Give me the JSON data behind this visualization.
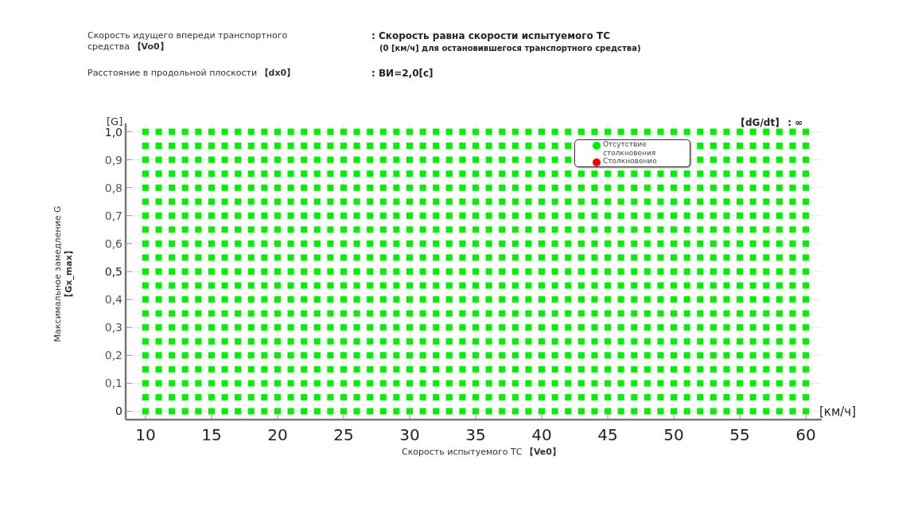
{
  "chart_data": {
    "type": "scatter",
    "annotations": [
      "Скорость идущего впереди транспортного средства 【Vo0】",
      "Расстояние в продольной плоскости 【dx0】",
      ": Скорость равна скорости испытуемого ТС",
      "(0 [км/ч] для остановившегося транспортного средства)",
      ": ВИ=2,0[с]",
      "[G]",
      "【dG/dt】 : ∞",
      "[км/ч]"
    ],
    "xlabel": "Скорость испытуемого ТС 【Ve0】",
    "ylabel": "Максимальное замедление G 【Gx_max】",
    "xlim": [
      8.5,
      61.2
    ],
    "ylim": [
      -0.03,
      1.03
    ],
    "xticks": [
      10,
      15,
      20,
      25,
      30,
      35,
      40,
      45,
      50,
      55,
      60
    ],
    "yticks": [
      {
        "value": 0,
        "label": "0"
      },
      {
        "value": 0.1,
        "label": "0,1"
      },
      {
        "value": 0.2,
        "label": "0,2"
      },
      {
        "value": 0.3,
        "label": "0,3"
      },
      {
        "value": 0.4,
        "label": "0,4"
      },
      {
        "value": 0.5,
        "label": "0,5"
      },
      {
        "value": 0.6,
        "label": "0,6"
      },
      {
        "value": 0.7,
        "label": "0,7"
      },
      {
        "value": 0.8,
        "label": "0,8"
      },
      {
        "value": 0.9,
        "label": "0,9"
      },
      {
        "value": 1.0,
        "label": "1,0"
      }
    ],
    "grid": true,
    "legend": "top right",
    "marker": "square",
    "x": [
      10,
      11,
      12,
      13,
      14,
      15,
      16,
      17,
      18,
      19,
      20,
      21,
      22,
      23,
      24,
      25,
      26,
      27,
      28,
      29,
      30,
      31,
      32,
      33,
      34,
      35,
      36,
      37,
      38,
      39,
      40,
      41,
      42,
      43,
      44,
      45,
      46,
      47,
      48,
      49,
      50,
      51,
      52,
      53,
      54,
      55,
      56,
      57,
      58,
      59,
      60
    ],
    "series": [
      {
        "name": "Отсутствие столкновения",
        "color": "#00f000",
        "values": [
          0,
          0,
          0,
          0,
          0,
          0,
          0,
          0,
          0,
          0,
          0,
          0,
          0,
          0,
          0,
          0,
          0,
          0,
          0,
          0,
          0,
          0,
          0,
          0,
          0,
          0,
          0,
          0,
          0,
          0,
          0,
          0,
          0,
          0,
          0,
          0,
          0,
          0,
          0,
          0,
          0,
          0,
          0,
          0,
          0,
          0,
          0,
          0,
          0,
          0,
          0
        ]
      },
      {
        "color": "#00f000",
        "values": [
          0.05,
          0.05,
          0.05,
          0.05,
          0.05,
          0.05,
          0.05,
          0.05,
          0.05,
          0.05,
          0.05,
          0.05,
          0.05,
          0.05,
          0.05,
          0.05,
          0.05,
          0.05,
          0.05,
          0.05,
          0.05,
          0.05,
          0.05,
          0.05,
          0.05,
          0.05,
          0.05,
          0.05,
          0.05,
          0.05,
          0.05,
          0.05,
          0.05,
          0.05,
          0.05,
          0.05,
          0.05,
          0.05,
          0.05,
          0.05,
          0.05,
          0.05,
          0.05,
          0.05,
          0.05,
          0.05,
          0.05,
          0.05,
          0.05,
          0.05,
          0.05
        ]
      },
      {
        "color": "#00f000",
        "values": [
          0.1,
          0.1,
          0.1,
          0.1,
          0.1,
          0.1,
          0.1,
          0.1,
          0.1,
          0.1,
          0.1,
          0.1,
          0.1,
          0.1,
          0.1,
          0.1,
          0.1,
          0.1,
          0.1,
          0.1,
          0.1,
          0.1,
          0.1,
          0.1,
          0.1,
          0.1,
          0.1,
          0.1,
          0.1,
          0.1,
          0.1,
          0.1,
          0.1,
          0.1,
          0.1,
          0.1,
          0.1,
          0.1,
          0.1,
          0.1,
          0.1,
          0.1,
          0.1,
          0.1,
          0.1,
          0.1,
          0.1,
          0.1,
          0.1,
          0.1,
          0.1
        ]
      },
      {
        "color": "#00f000",
        "values": [
          0.15,
          0.15,
          0.15,
          0.15,
          0.15,
          0.15,
          0.15,
          0.15,
          0.15,
          0.15,
          0.15,
          0.15,
          0.15,
          0.15,
          0.15,
          0.15,
          0.15,
          0.15,
          0.15,
          0.15,
          0.15,
          0.15,
          0.15,
          0.15,
          0.15,
          0.15,
          0.15,
          0.15,
          0.15,
          0.15,
          0.15,
          0.15,
          0.15,
          0.15,
          0.15,
          0.15,
          0.15,
          0.15,
          0.15,
          0.15,
          0.15,
          0.15,
          0.15,
          0.15,
          0.15,
          0.15,
          0.15,
          0.15,
          0.15,
          0.15,
          0.15
        ]
      },
      {
        "color": "#00f000",
        "values": [
          0.2,
          0.2,
          0.2,
          0.2,
          0.2,
          0.2,
          0.2,
          0.2,
          0.2,
          0.2,
          0.2,
          0.2,
          0.2,
          0.2,
          0.2,
          0.2,
          0.2,
          0.2,
          0.2,
          0.2,
          0.2,
          0.2,
          0.2,
          0.2,
          0.2,
          0.2,
          0.2,
          0.2,
          0.2,
          0.2,
          0.2,
          0.2,
          0.2,
          0.2,
          0.2,
          0.2,
          0.2,
          0.2,
          0.2,
          0.2,
          0.2,
          0.2,
          0.2,
          0.2,
          0.2,
          0.2,
          0.2,
          0.2,
          0.2,
          0.2,
          0.2
        ]
      },
      {
        "color": "#00f000",
        "values": [
          0.25,
          0.25,
          0.25,
          0.25,
          0.25,
          0.25,
          0.25,
          0.25,
          0.25,
          0.25,
          0.25,
          0.25,
          0.25,
          0.25,
          0.25,
          0.25,
          0.25,
          0.25,
          0.25,
          0.25,
          0.25,
          0.25,
          0.25,
          0.25,
          0.25,
          0.25,
          0.25,
          0.25,
          0.25,
          0.25,
          0.25,
          0.25,
          0.25,
          0.25,
          0.25,
          0.25,
          0.25,
          0.25,
          0.25,
          0.25,
          0.25,
          0.25,
          0.25,
          0.25,
          0.25,
          0.25,
          0.25,
          0.25,
          0.25,
          0.25,
          0.25
        ]
      },
      {
        "color": "#00f000",
        "values": [
          0.3,
          0.3,
          0.3,
          0.3,
          0.3,
          0.3,
          0.3,
          0.3,
          0.3,
          0.3,
          0.3,
          0.3,
          0.3,
          0.3,
          0.3,
          0.3,
          0.3,
          0.3,
          0.3,
          0.3,
          0.3,
          0.3,
          0.3,
          0.3,
          0.3,
          0.3,
          0.3,
          0.3,
          0.3,
          0.3,
          0.3,
          0.3,
          0.3,
          0.3,
          0.3,
          0.3,
          0.3,
          0.3,
          0.3,
          0.3,
          0.3,
          0.3,
          0.3,
          0.3,
          0.3,
          0.3,
          0.3,
          0.3,
          0.3,
          0.3,
          0.3
        ]
      },
      {
        "color": "#00f000",
        "values": [
          0.35,
          0.35,
          0.35,
          0.35,
          0.35,
          0.35,
          0.35,
          0.35,
          0.35,
          0.35,
          0.35,
          0.35,
          0.35,
          0.35,
          0.35,
          0.35,
          0.35,
          0.35,
          0.35,
          0.35,
          0.35,
          0.35,
          0.35,
          0.35,
          0.35,
          0.35,
          0.35,
          0.35,
          0.35,
          0.35,
          0.35,
          0.35,
          0.35,
          0.35,
          0.35,
          0.35,
          0.35,
          0.35,
          0.35,
          0.35,
          0.35,
          0.35,
          0.35,
          0.35,
          0.35,
          0.35,
          0.35,
          0.35,
          0.35,
          0.35,
          0.35
        ]
      },
      {
        "color": "#00f000",
        "values": [
          0.4,
          0.4,
          0.4,
          0.4,
          0.4,
          0.4,
          0.4,
          0.4,
          0.4,
          0.4,
          0.4,
          0.4,
          0.4,
          0.4,
          0.4,
          0.4,
          0.4,
          0.4,
          0.4,
          0.4,
          0.4,
          0.4,
          0.4,
          0.4,
          0.4,
          0.4,
          0.4,
          0.4,
          0.4,
          0.4,
          0.4,
          0.4,
          0.4,
          0.4,
          0.4,
          0.4,
          0.4,
          0.4,
          0.4,
          0.4,
          0.4,
          0.4,
          0.4,
          0.4,
          0.4,
          0.4,
          0.4,
          0.4,
          0.4,
          0.4,
          0.4
        ]
      },
      {
        "color": "#00f000",
        "values": [
          0.45,
          0.45,
          0.45,
          0.45,
          0.45,
          0.45,
          0.45,
          0.45,
          0.45,
          0.45,
          0.45,
          0.45,
          0.45,
          0.45,
          0.45,
          0.45,
          0.45,
          0.45,
          0.45,
          0.45,
          0.45,
          0.45,
          0.45,
          0.45,
          0.45,
          0.45,
          0.45,
          0.45,
          0.45,
          0.45,
          0.45,
          0.45,
          0.45,
          0.45,
          0.45,
          0.45,
          0.45,
          0.45,
          0.45,
          0.45,
          0.45,
          0.45,
          0.45,
          0.45,
          0.45,
          0.45,
          0.45,
          0.45,
          0.45,
          0.45,
          0.45
        ]
      },
      {
        "color": "#00f000",
        "values": [
          0.5,
          0.5,
          0.5,
          0.5,
          0.5,
          0.5,
          0.5,
          0.5,
          0.5,
          0.5,
          0.5,
          0.5,
          0.5,
          0.5,
          0.5,
          0.5,
          0.5,
          0.5,
          0.5,
          0.5,
          0.5,
          0.5,
          0.5,
          0.5,
          0.5,
          0.5,
          0.5,
          0.5,
          0.5,
          0.5,
          0.5,
          0.5,
          0.5,
          0.5,
          0.5,
          0.5,
          0.5,
          0.5,
          0.5,
          0.5,
          0.5,
          0.5,
          0.5,
          0.5,
          0.5,
          0.5,
          0.5,
          0.5,
          0.5,
          0.5,
          0.5
        ]
      },
      {
        "color": "#00f000",
        "values": [
          0.55,
          0.55,
          0.55,
          0.55,
          0.55,
          0.55,
          0.55,
          0.55,
          0.55,
          0.55,
          0.55,
          0.55,
          0.55,
          0.55,
          0.55,
          0.55,
          0.55,
          0.55,
          0.55,
          0.55,
          0.55,
          0.55,
          0.55,
          0.55,
          0.55,
          0.55,
          0.55,
          0.55,
          0.55,
          0.55,
          0.55,
          0.55,
          0.55,
          0.55,
          0.55,
          0.55,
          0.55,
          0.55,
          0.55,
          0.55,
          0.55,
          0.55,
          0.55,
          0.55,
          0.55,
          0.55,
          0.55,
          0.55,
          0.55,
          0.55,
          0.55
        ]
      },
      {
        "color": "#00f000",
        "values": [
          0.6,
          0.6,
          0.6,
          0.6,
          0.6,
          0.6,
          0.6,
          0.6,
          0.6,
          0.6,
          0.6,
          0.6,
          0.6,
          0.6,
          0.6,
          0.6,
          0.6,
          0.6,
          0.6,
          0.6,
          0.6,
          0.6,
          0.6,
          0.6,
          0.6,
          0.6,
          0.6,
          0.6,
          0.6,
          0.6,
          0.6,
          0.6,
          0.6,
          0.6,
          0.6,
          0.6,
          0.6,
          0.6,
          0.6,
          0.6,
          0.6,
          0.6,
          0.6,
          0.6,
          0.6,
          0.6,
          0.6,
          0.6,
          0.6,
          0.6,
          0.6
        ]
      },
      {
        "color": "#00f000",
        "values": [
          0.65,
          0.65,
          0.65,
          0.65,
          0.65,
          0.65,
          0.65,
          0.65,
          0.65,
          0.65,
          0.65,
          0.65,
          0.65,
          0.65,
          0.65,
          0.65,
          0.65,
          0.65,
          0.65,
          0.65,
          0.65,
          0.65,
          0.65,
          0.65,
          0.65,
          0.65,
          0.65,
          0.65,
          0.65,
          0.65,
          0.65,
          0.65,
          0.65,
          0.65,
          0.65,
          0.65,
          0.65,
          0.65,
          0.65,
          0.65,
          0.65,
          0.65,
          0.65,
          0.65,
          0.65,
          0.65,
          0.65,
          0.65,
          0.65,
          0.65,
          0.65
        ]
      },
      {
        "color": "#00f000",
        "values": [
          0.7,
          0.7,
          0.7,
          0.7,
          0.7,
          0.7,
          0.7,
          0.7,
          0.7,
          0.7,
          0.7,
          0.7,
          0.7,
          0.7,
          0.7,
          0.7,
          0.7,
          0.7,
          0.7,
          0.7,
          0.7,
          0.7,
          0.7,
          0.7,
          0.7,
          0.7,
          0.7,
          0.7,
          0.7,
          0.7,
          0.7,
          0.7,
          0.7,
          0.7,
          0.7,
          0.7,
          0.7,
          0.7,
          0.7,
          0.7,
          0.7,
          0.7,
          0.7,
          0.7,
          0.7,
          0.7,
          0.7,
          0.7,
          0.7,
          0.7,
          0.7
        ]
      },
      {
        "color": "#00f000",
        "values": [
          0.75,
          0.75,
          0.75,
          0.75,
          0.75,
          0.75,
          0.75,
          0.75,
          0.75,
          0.75,
          0.75,
          0.75,
          0.75,
          0.75,
          0.75,
          0.75,
          0.75,
          0.75,
          0.75,
          0.75,
          0.75,
          0.75,
          0.75,
          0.75,
          0.75,
          0.75,
          0.75,
          0.75,
          0.75,
          0.75,
          0.75,
          0.75,
          0.75,
          0.75,
          0.75,
          0.75,
          0.75,
          0.75,
          0.75,
          0.75,
          0.75,
          0.75,
          0.75,
          0.75,
          0.75,
          0.75,
          0.75,
          0.75,
          0.75,
          0.75,
          0.75
        ]
      },
      {
        "color": "#00f000",
        "values": [
          0.8,
          0.8,
          0.8,
          0.8,
          0.8,
          0.8,
          0.8,
          0.8,
          0.8,
          0.8,
          0.8,
          0.8,
          0.8,
          0.8,
          0.8,
          0.8,
          0.8,
          0.8,
          0.8,
          0.8,
          0.8,
          0.8,
          0.8,
          0.8,
          0.8,
          0.8,
          0.8,
          0.8,
          0.8,
          0.8,
          0.8,
          0.8,
          0.8,
          0.8,
          0.8,
          0.8,
          0.8,
          0.8,
          0.8,
          0.8,
          0.8,
          0.8,
          0.8,
          0.8,
          0.8,
          0.8,
          0.8,
          0.8,
          0.8,
          0.8,
          0.8
        ]
      },
      {
        "color": "#00f000",
        "values": [
          0.85,
          0.85,
          0.85,
          0.85,
          0.85,
          0.85,
          0.85,
          0.85,
          0.85,
          0.85,
          0.85,
          0.85,
          0.85,
          0.85,
          0.85,
          0.85,
          0.85,
          0.85,
          0.85,
          0.85,
          0.85,
          0.85,
          0.85,
          0.85,
          0.85,
          0.85,
          0.85,
          0.85,
          0.85,
          0.85,
          0.85,
          0.85,
          0.85,
          0.85,
          0.85,
          0.85,
          0.85,
          0.85,
          0.85,
          0.85,
          0.85,
          0.85,
          0.85,
          0.85,
          0.85,
          0.85,
          0.85,
          0.85,
          0.85,
          0.85,
          0.85
        ]
      },
      {
        "color": "#00f000",
        "values": [
          0.9,
          0.9,
          0.9,
          0.9,
          0.9,
          0.9,
          0.9,
          0.9,
          0.9,
          0.9,
          0.9,
          0.9,
          0.9,
          0.9,
          0.9,
          0.9,
          0.9,
          0.9,
          0.9,
          0.9,
          0.9,
          0.9,
          0.9,
          0.9,
          0.9,
          0.9,
          0.9,
          0.9,
          0.9,
          0.9,
          0.9,
          0.9,
          0.9,
          null,
          null,
          null,
          null,
          null,
          null,
          null,
          null,
          null,
          0.9,
          0.9,
          0.9,
          0.9,
          0.9,
          0.9,
          0.9,
          0.9,
          0.9
        ]
      },
      {
        "color": "#00f000",
        "values": [
          0.95,
          0.95,
          0.95,
          0.95,
          0.95,
          0.95,
          0.95,
          0.95,
          0.95,
          0.95,
          0.95,
          0.95,
          0.95,
          0.95,
          0.95,
          0.95,
          0.95,
          0.95,
          0.95,
          0.95,
          0.95,
          0.95,
          0.95,
          0.95,
          0.95,
          0.95,
          0.95,
          0.95,
          0.95,
          0.95,
          0.95,
          0.95,
          0.95,
          null,
          null,
          null,
          null,
          null,
          null,
          null,
          null,
          null,
          0.95,
          0.95,
          0.95,
          0.95,
          0.95,
          0.95,
          0.95,
          0.95,
          0.95
        ]
      },
      {
        "color": "#00f000",
        "values": [
          1.0,
          1.0,
          1.0,
          1.0,
          1.0,
          1.0,
          1.0,
          1.0,
          1.0,
          1.0,
          1.0,
          1.0,
          1.0,
          1.0,
          1.0,
          1.0,
          1.0,
          1.0,
          1.0,
          1.0,
          1.0,
          1.0,
          1.0,
          1.0,
          1.0,
          1.0,
          1.0,
          1.0,
          1.0,
          1.0,
          1.0,
          1.0,
          1.0,
          1.0,
          1.0,
          1.0,
          1.0,
          1.0,
          1.0,
          1.0,
          1.0,
          1.0,
          1.0,
          1.0,
          1.0,
          1.0,
          1.0,
          1.0,
          1.0,
          1.0,
          1.0
        ]
      },
      {
        "name": "Столкновение",
        "color": "#ff0000",
        "values": [
          null,
          null,
          null,
          null,
          null,
          null,
          null,
          null,
          null,
          null,
          null,
          null,
          null,
          null,
          null,
          null,
          null,
          null,
          null,
          null,
          null,
          null,
          null,
          null,
          null,
          null,
          null,
          null,
          null,
          null,
          null,
          null,
          null,
          null,
          null,
          null,
          null,
          null,
          null,
          null,
          null,
          null,
          null,
          null,
          null,
          null,
          null,
          null,
          null,
          null,
          null
        ]
      }
    ]
  }
}
